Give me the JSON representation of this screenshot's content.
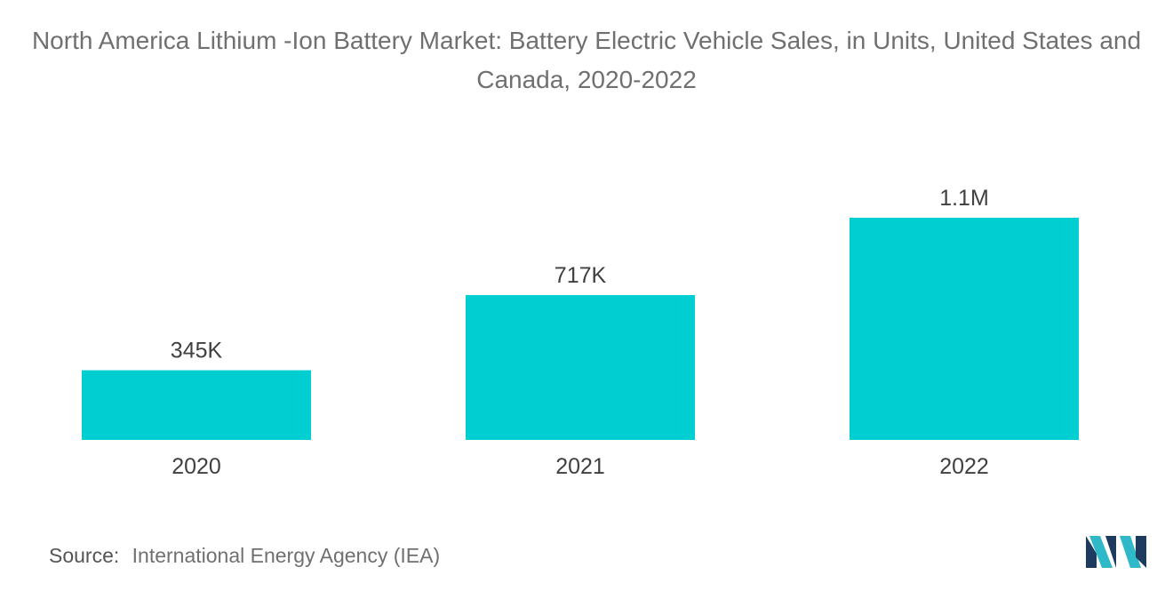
{
  "chart_data": {
    "type": "bar",
    "title": "North America Lithium -Ion Battery Market: Battery Electric Vehicle Sales, in Units, United States and Canada, 2020-2022",
    "categories": [
      "2020",
      "2021",
      "2022"
    ],
    "values": [
      345000,
      717000,
      1100000
    ],
    "data_labels": [
      "345K",
      "717K",
      "1.1M"
    ],
    "xlabel": "",
    "ylabel": "",
    "ylim": [
      0,
      1100000
    ],
    "grid": false,
    "bar_color": "#00CED1"
  },
  "source": {
    "label": "Source:",
    "text": "International Energy Agency (IEA)"
  },
  "logo": {
    "icon": "mordor-intelligence-logo-icon",
    "colors": [
      "#1E3A5F",
      "#2FB9C8"
    ]
  }
}
